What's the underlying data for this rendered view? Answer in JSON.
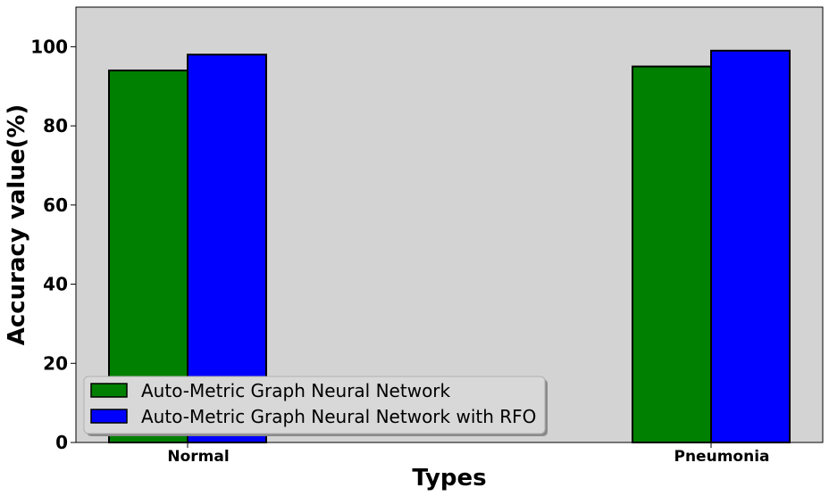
{
  "chart_data": {
    "type": "bar",
    "categories": [
      "Normal",
      "Pneumonia"
    ],
    "series": [
      {
        "name": "Auto-Metric Graph Neural Network",
        "values": [
          94,
          95
        ],
        "color": "#008000"
      },
      {
        "name": "Auto-Metric Graph Neural Network with RFO",
        "values": [
          98,
          99
        ],
        "color": "#0000ff"
      }
    ],
    "xlabel": "Types",
    "ylabel": "Accuracy value(%)",
    "ylim": [
      0,
      110
    ],
    "yticks": [
      0,
      20,
      40,
      60,
      80,
      100
    ],
    "background": "#d3d3d3",
    "edge_color": "#000000",
    "grid": false,
    "legend_position": "lower-left"
  }
}
